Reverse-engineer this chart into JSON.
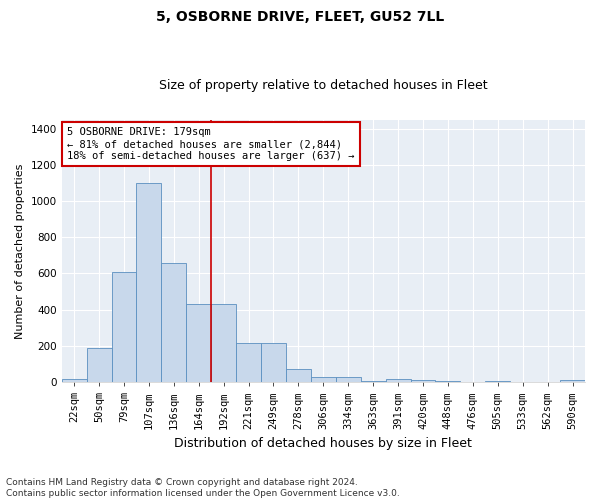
{
  "title": "5, OSBORNE DRIVE, FLEET, GU52 7LL",
  "subtitle": "Size of property relative to detached houses in Fleet",
  "xlabel": "Distribution of detached houses by size in Fleet",
  "ylabel": "Number of detached properties",
  "annotation_line1": "5 OSBORNE DRIVE: 179sqm",
  "annotation_line2": "← 81% of detached houses are smaller (2,844)",
  "annotation_line3": "18% of semi-detached houses are larger (637) →",
  "footer_line1": "Contains HM Land Registry data © Crown copyright and database right 2024.",
  "footer_line2": "Contains public sector information licensed under the Open Government Licence v3.0.",
  "bar_color": "#c8d8eb",
  "bar_edge_color": "#5a8fc0",
  "vline_color": "#cc0000",
  "background_color": "#e8eef5",
  "annotation_box_color": "white",
  "annotation_box_edge": "#cc0000",
  "categories": [
    "22sqm",
    "50sqm",
    "79sqm",
    "107sqm",
    "136sqm",
    "164sqm",
    "192sqm",
    "221sqm",
    "249sqm",
    "278sqm",
    "306sqm",
    "334sqm",
    "363sqm",
    "391sqm",
    "420sqm",
    "448sqm",
    "476sqm",
    "505sqm",
    "533sqm",
    "562sqm",
    "590sqm"
  ],
  "values": [
    15,
    190,
    610,
    1100,
    660,
    430,
    430,
    215,
    215,
    75,
    30,
    30,
    5,
    20,
    10,
    5,
    0,
    5,
    0,
    0,
    10
  ],
  "ylim": [
    0,
    1450
  ],
  "yticks": [
    0,
    200,
    400,
    600,
    800,
    1000,
    1200,
    1400
  ],
  "vline_x": 5.5,
  "title_fontsize": 10,
  "subtitle_fontsize": 9,
  "ylabel_fontsize": 8,
  "xlabel_fontsize": 9,
  "tick_fontsize": 7.5,
  "ann_fontsize": 7.5,
  "footer_fontsize": 6.5
}
